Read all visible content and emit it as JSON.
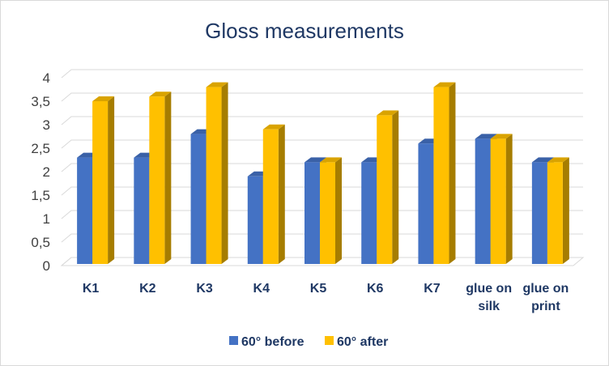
{
  "chart_data": {
    "type": "bar",
    "title": "Gloss measurements",
    "xlabel": "",
    "ylabel": "",
    "categories": [
      [
        "K1"
      ],
      [
        "K2"
      ],
      [
        "K3"
      ],
      [
        "K4"
      ],
      [
        "K5"
      ],
      [
        "K6"
      ],
      [
        "K7"
      ],
      [
        "glue on",
        "silk"
      ],
      [
        "glue on",
        "print"
      ]
    ],
    "series": [
      {
        "name": "60° before",
        "color": "#4472c4",
        "values": [
          2.3,
          2.3,
          2.8,
          1.9,
          2.2,
          2.2,
          2.6,
          2.7,
          2.2
        ]
      },
      {
        "name": "60° after",
        "color": "#ffc000",
        "values": [
          3.5,
          3.6,
          3.8,
          2.9,
          2.2,
          3.2,
          3.8,
          2.7,
          2.2
        ]
      }
    ],
    "ylim": [
      0,
      4
    ],
    "yticks": [
      "0",
      "0,5",
      "1",
      "1,5",
      "2",
      "2,5",
      "3",
      "3,5",
      "4"
    ],
    "grid": true,
    "legend_position": "bottom",
    "style": "3d-clustered-column"
  }
}
